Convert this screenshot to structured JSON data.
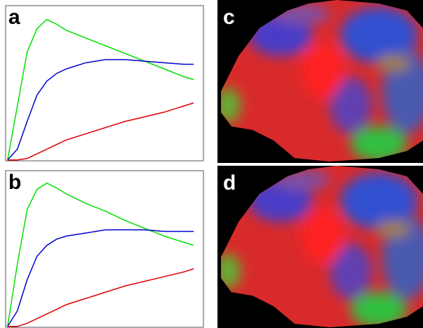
{
  "chart_data": [
    {
      "type": "line",
      "label": "a",
      "x": [
        0,
        0.05,
        0.1,
        0.15,
        0.2,
        0.25,
        0.3,
        0.4,
        0.5,
        0.6,
        0.7,
        0.8,
        0.9,
        0.95
      ],
      "xlim": [
        -0.01,
        1
      ],
      "ylim": [
        -0.01,
        1
      ],
      "series": [
        {
          "color": "#00e000",
          "values": [
            0,
            0.35,
            0.7,
            0.85,
            0.91,
            0.88,
            0.84,
            0.79,
            0.74,
            0.69,
            0.64,
            0.59,
            0.54,
            0.52
          ]
        },
        {
          "color": "#0000d0",
          "values": [
            0,
            0.07,
            0.25,
            0.42,
            0.51,
            0.56,
            0.59,
            0.63,
            0.65,
            0.65,
            0.64,
            0.63,
            0.62,
            0.62
          ]
        },
        {
          "color": "#e00000",
          "values": [
            0,
            0,
            0.01,
            0.04,
            0.07,
            0.1,
            0.13,
            0.17,
            0.21,
            0.25,
            0.28,
            0.31,
            0.35,
            0.37
          ]
        }
      ]
    },
    {
      "type": "line",
      "label": "b",
      "x": [
        0,
        0.05,
        0.1,
        0.15,
        0.2,
        0.25,
        0.3,
        0.4,
        0.5,
        0.6,
        0.7,
        0.8,
        0.9,
        0.95
      ],
      "xlim": [
        -0.01,
        1
      ],
      "ylim": [
        -0.01,
        1
      ],
      "series": [
        {
          "color": "#00e000",
          "values": [
            0,
            0.4,
            0.75,
            0.88,
            0.92,
            0.89,
            0.85,
            0.79,
            0.74,
            0.68,
            0.63,
            0.58,
            0.54,
            0.52
          ]
        },
        {
          "color": "#0000d0",
          "values": [
            0,
            0.1,
            0.3,
            0.45,
            0.52,
            0.56,
            0.58,
            0.6,
            0.62,
            0.62,
            0.62,
            0.61,
            0.61,
            0.61
          ]
        },
        {
          "color": "#e00000",
          "values": [
            0,
            0,
            0.02,
            0.05,
            0.08,
            0.11,
            0.14,
            0.18,
            0.22,
            0.26,
            0.29,
            0.32,
            0.35,
            0.37
          ]
        }
      ]
    }
  ],
  "images": [
    {
      "label": "c"
    },
    {
      "label": "d"
    }
  ]
}
